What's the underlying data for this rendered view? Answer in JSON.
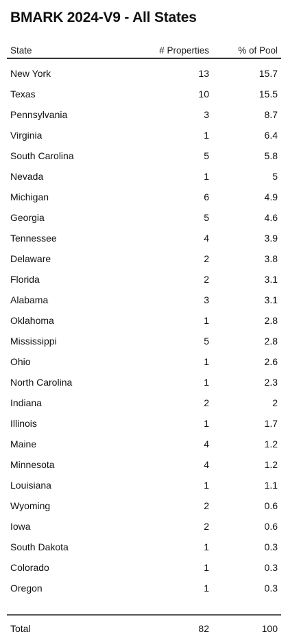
{
  "title": "BMARK 2024-V9 - All States",
  "columns": {
    "state": "State",
    "properties": "# Properties",
    "pct": "% of Pool"
  },
  "rows": [
    {
      "state": "New York",
      "properties": "13",
      "pct": "15.7"
    },
    {
      "state": "Texas",
      "properties": "10",
      "pct": "15.5"
    },
    {
      "state": "Pennsylvania",
      "properties": "3",
      "pct": "8.7"
    },
    {
      "state": "Virginia",
      "properties": "1",
      "pct": "6.4"
    },
    {
      "state": "South Carolina",
      "properties": "5",
      "pct": "5.8"
    },
    {
      "state": "Nevada",
      "properties": "1",
      "pct": "5"
    },
    {
      "state": "Michigan",
      "properties": "6",
      "pct": "4.9"
    },
    {
      "state": "Georgia",
      "properties": "5",
      "pct": "4.6"
    },
    {
      "state": "Tennessee",
      "properties": "4",
      "pct": "3.9"
    },
    {
      "state": "Delaware",
      "properties": "2",
      "pct": "3.8"
    },
    {
      "state": "Florida",
      "properties": "2",
      "pct": "3.1"
    },
    {
      "state": "Alabama",
      "properties": "3",
      "pct": "3.1"
    },
    {
      "state": "Oklahoma",
      "properties": "1",
      "pct": "2.8"
    },
    {
      "state": "Mississippi",
      "properties": "5",
      "pct": "2.8"
    },
    {
      "state": "Ohio",
      "properties": "1",
      "pct": "2.6"
    },
    {
      "state": "North Carolina",
      "properties": "1",
      "pct": "2.3"
    },
    {
      "state": "Indiana",
      "properties": "2",
      "pct": "2"
    },
    {
      "state": "Illinois",
      "properties": "1",
      "pct": "1.7"
    },
    {
      "state": "Maine",
      "properties": "4",
      "pct": "1.2"
    },
    {
      "state": "Minnesota",
      "properties": "4",
      "pct": "1.2"
    },
    {
      "state": "Louisiana",
      "properties": "1",
      "pct": "1.1"
    },
    {
      "state": "Wyoming",
      "properties": "2",
      "pct": "0.6"
    },
    {
      "state": "Iowa",
      "properties": "2",
      "pct": "0.6"
    },
    {
      "state": "South Dakota",
      "properties": "1",
      "pct": "0.3"
    },
    {
      "state": "Colorado",
      "properties": "1",
      "pct": "0.3"
    },
    {
      "state": "Oregon",
      "properties": "1",
      "pct": "0.3"
    }
  ],
  "total": {
    "label": "Total",
    "properties": "82",
    "pct": "100"
  }
}
